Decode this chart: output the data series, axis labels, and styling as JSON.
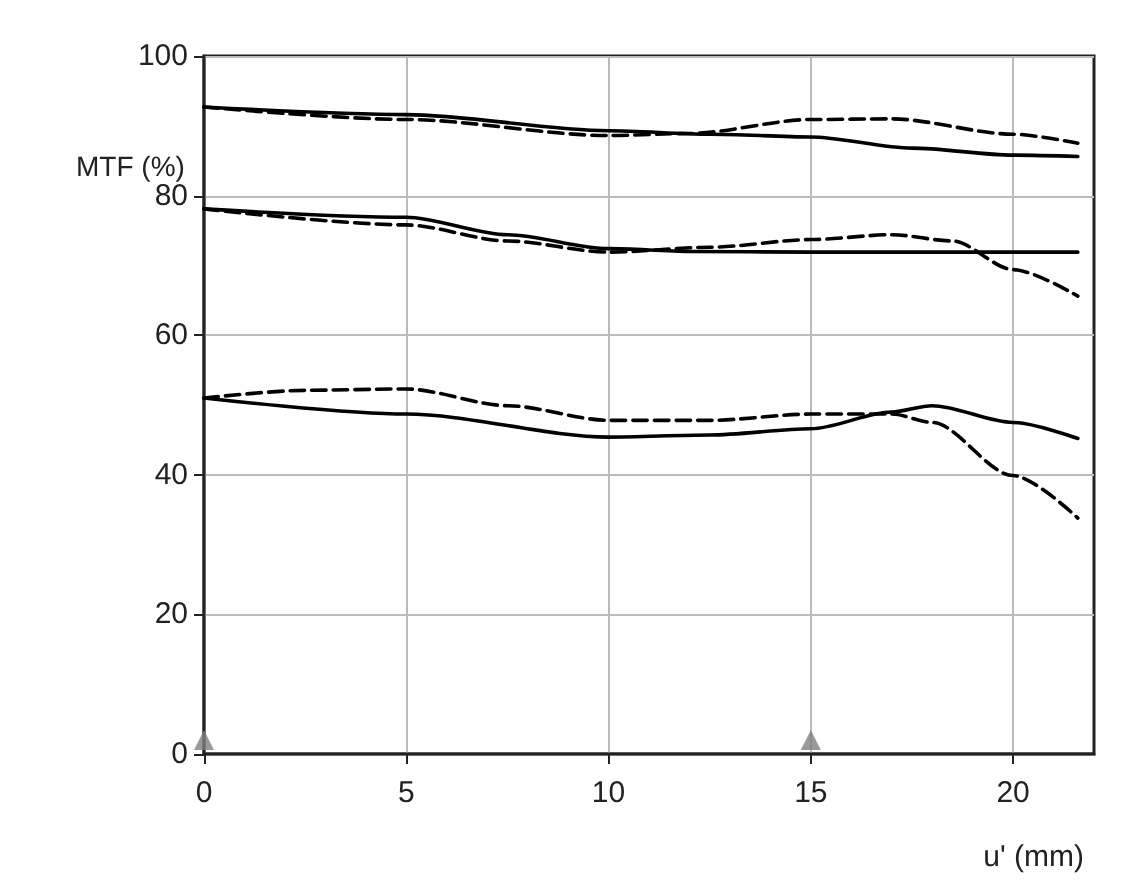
{
  "chart_data": {
    "type": "line",
    "xlabel": "u' (mm)",
    "ylabel": "MTF (%)",
    "xlim": [
      0,
      22
    ],
    "xticks": [
      0,
      5,
      10,
      15,
      20
    ],
    "ylim": [
      0,
      100
    ],
    "yticks": [
      0,
      20,
      40,
      60,
      80,
      100
    ],
    "grid": true,
    "marker": "none",
    "series": [
      {
        "color": "#000000",
        "line_style": "solid",
        "x": [
          0,
          5,
          10,
          12.5,
          15,
          17.5,
          20,
          21.6
        ],
        "values": [
          92.7,
          91.6,
          89.3,
          88.8,
          88.4,
          86.8,
          85.8,
          85.6
        ]
      },
      {
        "color": "#000000",
        "line_style": "dashed",
        "x": [
          0,
          5,
          10,
          12,
          15,
          17,
          20,
          21.6
        ],
        "values": [
          92.7,
          90.9,
          88.6,
          88.9,
          90.9,
          91.0,
          88.8,
          87.5
        ]
      },
      {
        "color": "#000000",
        "line_style": "solid",
        "x": [
          0,
          5,
          7.5,
          10,
          12,
          15,
          21.6
        ],
        "values": [
          78.1,
          76.9,
          74.4,
          72.4,
          72.0,
          71.9,
          71.9
        ]
      },
      {
        "color": "#000000",
        "line_style": "dashed",
        "x": [
          0,
          5,
          7.5,
          10,
          12.5,
          15,
          17,
          18.5,
          20,
          21.6
        ],
        "values": [
          78.1,
          75.8,
          73.5,
          71.9,
          72.6,
          73.7,
          74.4,
          73.5,
          69.4,
          65.6
        ]
      },
      {
        "color": "#000000",
        "line_style": "solid",
        "x": [
          0,
          5,
          10,
          12.5,
          15,
          17,
          18,
          20,
          21.6
        ],
        "values": [
          51.0,
          48.7,
          45.4,
          45.7,
          46.6,
          49.0,
          49.9,
          47.5,
          45.2
        ]
      },
      {
        "color": "#000000",
        "line_style": "dashed",
        "x": [
          0,
          2.5,
          5,
          7.5,
          10,
          12.5,
          15,
          17,
          18,
          20,
          21.6
        ],
        "values": [
          51.0,
          52.1,
          52.3,
          49.9,
          47.8,
          47.8,
          48.7,
          48.7,
          47.5,
          39.9,
          33.8
        ]
      },
      {
        "type": "scatter",
        "color": "#808080",
        "marker": "triangle",
        "x": [
          0,
          15
        ],
        "values": [
          2,
          2
        ]
      }
    ]
  }
}
